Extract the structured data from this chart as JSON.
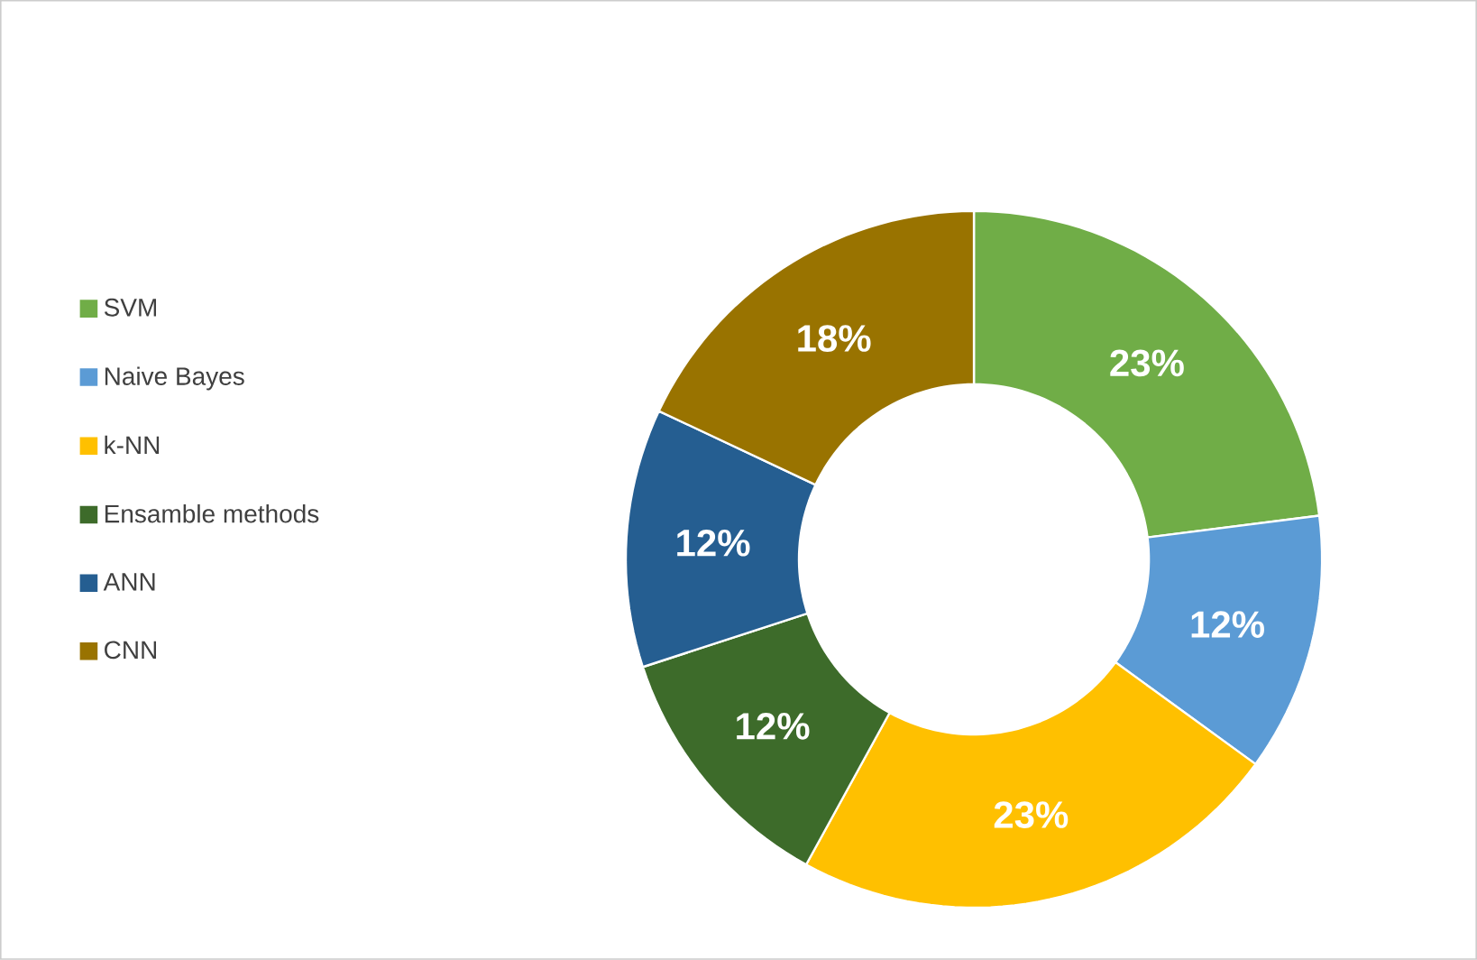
{
  "chart_data": {
    "type": "donut",
    "categories": [
      "SVM",
      "Naive Bayes",
      "k-NN",
      "Ensamble methods",
      "ANN",
      "CNN"
    ],
    "values": [
      23,
      12,
      23,
      12,
      12,
      18
    ],
    "colors": [
      "#70ad47",
      "#5b9bd5",
      "#ffc000",
      "#3d6b2a",
      "#255e91",
      "#997300"
    ],
    "value_labels": [
      "23%",
      "12%",
      "23%",
      "12%",
      "12%",
      "18%"
    ],
    "legend": "left"
  }
}
